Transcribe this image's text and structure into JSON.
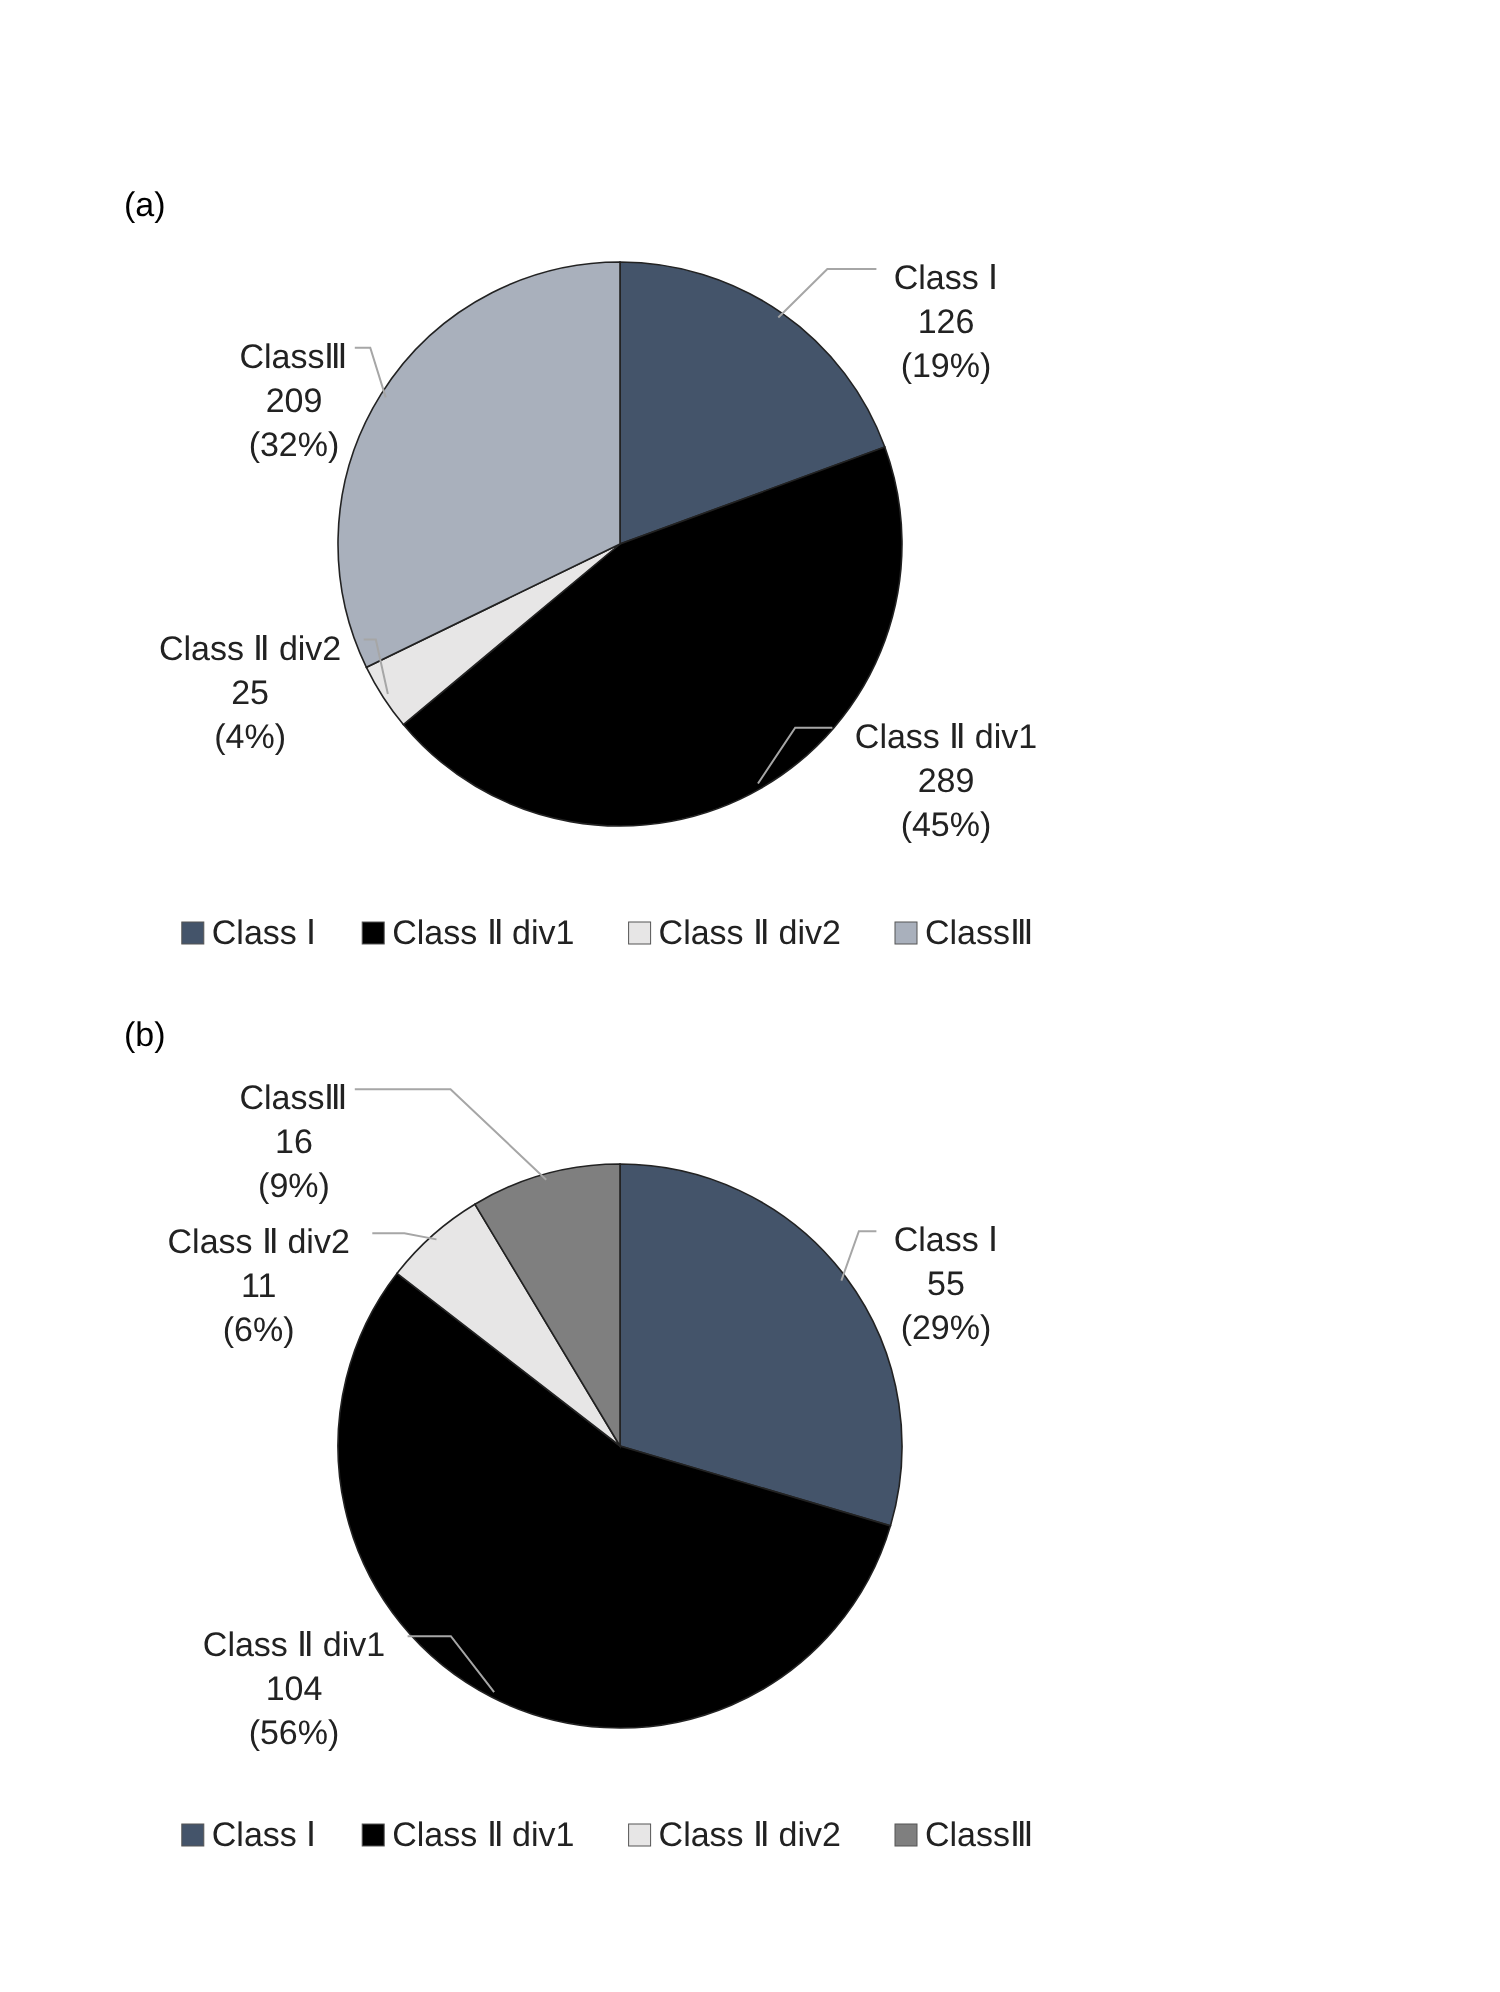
{
  "chart_data": [
    {
      "type": "pie",
      "title": "(a)",
      "categories": [
        "Class Ⅰ",
        "Class Ⅱ div1",
        "Class Ⅱ div2",
        "ClassⅢ"
      ],
      "values": [
        126,
        289,
        25,
        209
      ],
      "colors": [
        "#44546a",
        "#000000",
        "#e7e6e6",
        "#a9b0bc"
      ],
      "value_labels": [
        "126 (19%)",
        "289 (45%)",
        "25 (4%)",
        "209 (32%)"
      ],
      "legend": "bottom"
    },
    {
      "type": "pie",
      "title": "(b)",
      "categories": [
        "Class Ⅰ",
        "Class Ⅱ div1",
        "Class Ⅱ div2",
        "ClassⅢ"
      ],
      "values": [
        55,
        104,
        11,
        16
      ],
      "colors": [
        "#44546a",
        "#000000",
        "#e7e6e6",
        "#7f7f7f"
      ],
      "value_labels": [
        "55 (29%)",
        "104 (56%)",
        "11 (6%)",
        "16 (9%)"
      ],
      "legend": "bottom"
    }
  ]
}
